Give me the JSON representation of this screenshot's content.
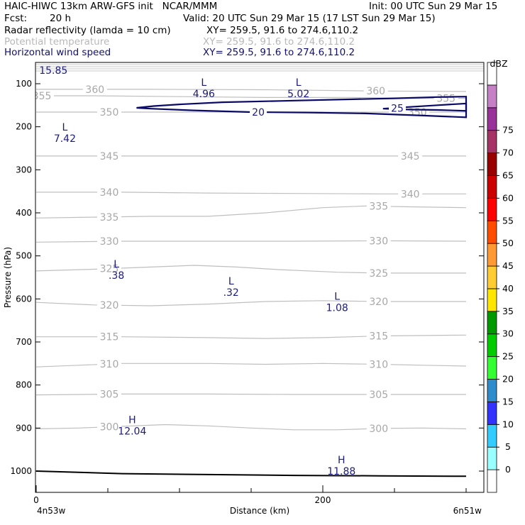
{
  "header": {
    "title_left": "HAIC-HIWC 13km ARW-GFS init   NCAR/MMM",
    "init": "Init: 00 UTC Sun 29 Mar 15",
    "fcst_label": "Fcst:",
    "fcst_value": "20 h",
    "valid": "Valid: 20 UTC Sun 29 Mar 15 (17 LST Sun 29 Mar 15)",
    "fields": [
      {
        "name": "Radar reflectivity (lamda = 10 cm)",
        "xy": "XY= 259.5, 91.6 to 274.6,110.2",
        "style": "black"
      },
      {
        "name": "Potential temperature",
        "xy": "XY= 259.5, 91.6 to 274.6,110.2",
        "style": "gray"
      },
      {
        "name": "Horizontal wind speed",
        "xy": "XY= 259.5, 91.6 to 274.6,110.2",
        "style": "navy"
      }
    ]
  },
  "colors": {
    "theta": "#bfbfbf",
    "theta_label": "#a8a8a8",
    "wind": "#0a0a66",
    "ground": "#000000",
    "terrain_band": "#c8c8c8"
  },
  "chart_data": {
    "type": "contour",
    "xlabel": "Distance (km)",
    "ylabel": "Pressure (hPa)",
    "xlim": [
      0,
      300
    ],
    "ylim_pressure": [
      1050,
      50
    ],
    "x_ticks": [
      {
        "v": 0,
        "label": "0"
      },
      {
        "v": 200,
        "label": "200"
      }
    ],
    "x_minor_ticks": [
      50,
      100,
      150,
      250,
      300
    ],
    "y_ticks": [
      100,
      200,
      300,
      400,
      500,
      600,
      700,
      800,
      900,
      1000
    ],
    "x_end_labels": {
      "left": "4n53w",
      "right": "6n51w"
    },
    "theta_contours": [
      {
        "value": 300,
        "label": "300",
        "points": [
          [
            0,
            902
          ],
          [
            30,
            900
          ],
          [
            60,
            896
          ],
          [
            90,
            892
          ],
          [
            120,
            895
          ],
          [
            150,
            900
          ],
          [
            180,
            904
          ],
          [
            210,
            904
          ],
          [
            240,
            901
          ],
          [
            270,
            900
          ],
          [
            300,
            902
          ]
        ],
        "labels_at": [
          50,
          238
        ]
      },
      {
        "value": 305,
        "label": "305",
        "points": [
          [
            0,
            823
          ],
          [
            60,
            821
          ],
          [
            120,
            821
          ],
          [
            180,
            822
          ],
          [
            240,
            822
          ],
          [
            300,
            822
          ]
        ],
        "labels_at": [
          50,
          238
        ]
      },
      {
        "value": 310,
        "label": "310",
        "points": [
          [
            0,
            758
          ],
          [
            30,
            754
          ],
          [
            60,
            750
          ],
          [
            120,
            750
          ],
          [
            160,
            752
          ],
          [
            200,
            750
          ],
          [
            240,
            752
          ],
          [
            270,
            754
          ],
          [
            300,
            756
          ]
        ],
        "labels_at": [
          50,
          238
        ]
      },
      {
        "value": 315,
        "label": "315",
        "points": [
          [
            0,
            688
          ],
          [
            60,
            688
          ],
          [
            120,
            690
          ],
          [
            160,
            692
          ],
          [
            200,
            690
          ],
          [
            240,
            686
          ],
          [
            300,
            684
          ]
        ],
        "labels_at": [
          50,
          238
        ]
      },
      {
        "value": 320,
        "label": "320",
        "points": [
          [
            0,
            608
          ],
          [
            40,
            614
          ],
          [
            80,
            616
          ],
          [
            120,
            612
          ],
          [
            160,
            606
          ],
          [
            200,
            604
          ],
          [
            240,
            606
          ],
          [
            300,
            606
          ]
        ],
        "labels_at": [
          50,
          238
        ]
      },
      {
        "value": 325,
        "label": "325",
        "points": [
          [
            0,
            535
          ],
          [
            40,
            531
          ],
          [
            80,
            526
          ],
          [
            110,
            522
          ],
          [
            140,
            526
          ],
          [
            170,
            532
          ],
          [
            210,
            538
          ],
          [
            240,
            540
          ],
          [
            300,
            540
          ]
        ],
        "labels_at": [
          50,
          238
        ]
      },
      {
        "value": 330,
        "label": "330",
        "points": [
          [
            0,
            468
          ],
          [
            60,
            466
          ],
          [
            120,
            466
          ],
          [
            180,
            466
          ],
          [
            240,
            465
          ],
          [
            300,
            466
          ]
        ],
        "labels_at": [
          50,
          238
        ]
      },
      {
        "value": 335,
        "label": "335",
        "points": [
          [
            0,
            412
          ],
          [
            40,
            410
          ],
          [
            80,
            408
          ],
          [
            120,
            408
          ],
          [
            160,
            400
          ],
          [
            200,
            388
          ],
          [
            230,
            384
          ],
          [
            260,
            386
          ],
          [
            300,
            388
          ]
        ],
        "labels_at": [
          50,
          238
        ]
      },
      {
        "value": 340,
        "label": "340",
        "points": [
          [
            0,
            352
          ],
          [
            60,
            352
          ],
          [
            120,
            354
          ],
          [
            180,
            355
          ],
          [
            240,
            356
          ],
          [
            300,
            356
          ]
        ],
        "labels_at": [
          50,
          260
        ]
      },
      {
        "value": 345,
        "label": "345",
        "points": [
          [
            0,
            268
          ],
          [
            60,
            268
          ],
          [
            120,
            268
          ],
          [
            180,
            268
          ],
          [
            240,
            268
          ],
          [
            300,
            268
          ]
        ],
        "labels_at": [
          50,
          260
        ]
      },
      {
        "value": 350,
        "label": "350",
        "points": [
          [
            0,
            166
          ],
          [
            60,
            166
          ],
          [
            120,
            166
          ],
          [
            180,
            166
          ],
          [
            240,
            166
          ],
          [
            300,
            166
          ]
        ],
        "labels_at": [
          50,
          265
        ]
      },
      {
        "value": 355,
        "label": "355",
        "points": [
          [
            0,
            128
          ],
          [
            40,
            128
          ],
          [
            100,
            130
          ],
          [
            160,
            132
          ],
          [
            220,
            132
          ],
          [
            260,
            134
          ],
          [
            300,
            134
          ]
        ],
        "labels_at": [
          3,
          285
        ]
      },
      {
        "value": 360,
        "label": "360",
        "points": [
          [
            0,
            113
          ],
          [
            80,
            113
          ],
          [
            160,
            114
          ],
          [
            240,
            117
          ],
          [
            300,
            118
          ]
        ],
        "labels_at": [
          40,
          236
        ]
      }
    ],
    "wind_contours": [
      {
        "value": 20,
        "label": "20",
        "closed": false,
        "points": [
          [
            70,
            156
          ],
          [
            82,
            152
          ],
          [
            100,
            148
          ],
          [
            130,
            143
          ],
          [
            170,
            140
          ],
          [
            210,
            137
          ],
          [
            250,
            134
          ],
          [
            280,
            131
          ],
          [
            300,
            130
          ],
          [
            300,
            178
          ],
          [
            270,
            174
          ],
          [
            230,
            169
          ],
          [
            190,
            167
          ],
          [
            150,
            166
          ],
          [
            110,
            162
          ],
          [
            80,
            158
          ],
          [
            70,
            156
          ]
        ],
        "label_at": [
          155,
          166
        ]
      },
      {
        "value": 25,
        "label": "25",
        "closed": false,
        "points": [
          [
            242,
            158
          ],
          [
            260,
            154
          ],
          [
            280,
            150
          ],
          [
            300,
            146
          ],
          [
            300,
            163
          ],
          [
            280,
            161
          ],
          [
            260,
            160
          ],
          [
            242,
            158
          ]
        ],
        "label_at": [
          252,
          157
        ]
      }
    ],
    "annotations": [
      {
        "kind": "L",
        "value": "4.96",
        "x": 117,
        "p": 108
      },
      {
        "kind": "L",
        "value": "5.02",
        "x": 183,
        "p": 108
      },
      {
        "kind": "L",
        "value": "7.42",
        "x": 20,
        "p": 212
      },
      {
        "kind": "L",
        "value": ".38",
        "x": 56,
        "p": 530
      },
      {
        "kind": "L",
        "value": ".32",
        "x": 136,
        "p": 570
      },
      {
        "kind": "L",
        "value": "1.08",
        "x": 210,
        "p": 605
      },
      {
        "kind": "H",
        "value": "12.04",
        "x": 67,
        "p": 892
      },
      {
        "kind": "H",
        "value": "11.88",
        "x": 213,
        "p": 985
      }
    ],
    "top_label": "15.85",
    "ground_line": [
      [
        0,
        1000
      ],
      [
        60,
        1006
      ],
      [
        120,
        1008
      ],
      [
        180,
        1010
      ],
      [
        240,
        1011
      ],
      [
        300,
        1012
      ]
    ],
    "colorbar": {
      "title": "dBZ",
      "labels": [
        "0",
        "5",
        "10",
        "15",
        "20",
        "25",
        "30",
        "35",
        "40",
        "45",
        "50",
        "55",
        "60",
        "65",
        "70",
        "75"
      ],
      "colors": [
        "#ffffff",
        "#99ffff",
        "#33ccff",
        "#3333ff",
        "#2f8ccc",
        "#33ff33",
        "#00cc00",
        "#009900",
        "#ffe600",
        "#ffcc33",
        "#ff9933",
        "#ff4d00",
        "#ff0000",
        "#cc0000",
        "#990000",
        "#a63366",
        "#993399",
        "#c680c6",
        "#ffffff"
      ]
    }
  }
}
